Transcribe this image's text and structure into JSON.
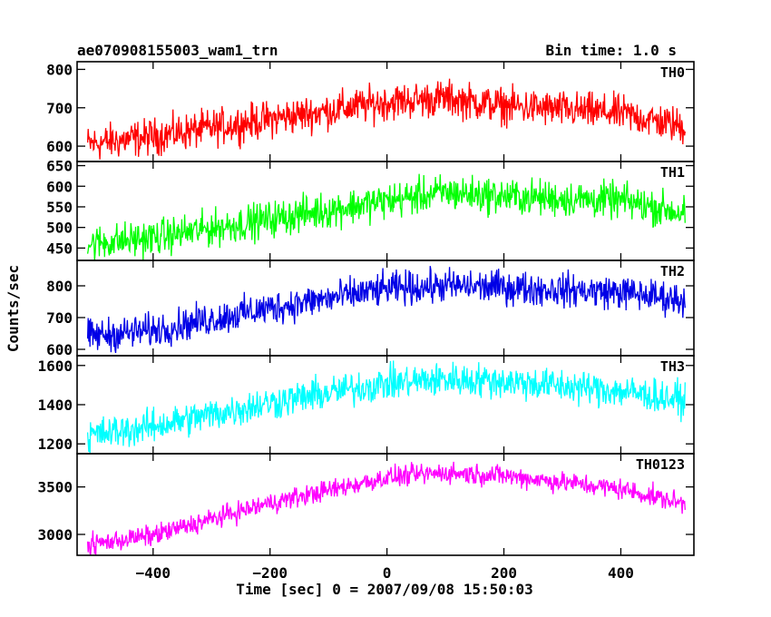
{
  "header": {
    "title": "ae070908155003_wam1_trn",
    "bin_time": "Bin time: 1.0 s"
  },
  "chart_data": {
    "type": "line",
    "xlabel": "Time [sec] 0 = 2007/09/08 15:50:03",
    "ylabel": "Counts/sec",
    "xlim": [
      -530,
      525
    ],
    "x_ticks": [
      -400,
      -200,
      0,
      200,
      400
    ],
    "x_tick_labels": [
      "−400",
      "−200",
      "0",
      "200",
      "400"
    ],
    "x_range": [
      -512,
      510
    ],
    "bin_time_s": 1.0,
    "panels": [
      {
        "name": "TH0",
        "color": "#ff0000",
        "ylim": [
          560,
          820
        ],
        "y_ticks": [
          600,
          700,
          800
        ],
        "y_tick_labels": [
          "600",
          "700",
          "800"
        ],
        "trend": [
          [
            -512,
            605
          ],
          [
            -400,
            625
          ],
          [
            -200,
            670
          ],
          [
            0,
            715
          ],
          [
            100,
            725
          ],
          [
            200,
            705
          ],
          [
            400,
            685
          ],
          [
            510,
            650
          ]
        ],
        "noise_amp": 52
      },
      {
        "name": "TH1",
        "color": "#00ff00",
        "ylim": [
          420,
          660
        ],
        "y_ticks": [
          450,
          500,
          550,
          600,
          650
        ],
        "y_tick_labels": [
          "450",
          "500",
          "550",
          "600",
          "650"
        ],
        "trend": [
          [
            -512,
            460
          ],
          [
            -400,
            475
          ],
          [
            -200,
            520
          ],
          [
            0,
            565
          ],
          [
            100,
            585
          ],
          [
            200,
            575
          ],
          [
            400,
            565
          ],
          [
            510,
            535
          ]
        ],
        "noise_amp": 48
      },
      {
        "name": "TH2",
        "color": "#0000e6",
        "ylim": [
          580,
          880
        ],
        "y_ticks": [
          600,
          700,
          800
        ],
        "y_tick_labels": [
          "600",
          "700",
          "800"
        ],
        "trend": [
          [
            -512,
            640
          ],
          [
            -400,
            660
          ],
          [
            -200,
            730
          ],
          [
            0,
            790
          ],
          [
            100,
            800
          ],
          [
            200,
            795
          ],
          [
            400,
            780
          ],
          [
            510,
            755
          ]
        ],
        "noise_amp": 58
      },
      {
        "name": "TH3",
        "color": "#00ffff",
        "ylim": [
          1150,
          1650
        ],
        "y_ticks": [
          1200,
          1400,
          1600
        ],
        "y_tick_labels": [
          "1200",
          "1400",
          "1600"
        ],
        "trend": [
          [
            -512,
            1240
          ],
          [
            -400,
            1290
          ],
          [
            -200,
            1410
          ],
          [
            0,
            1510
          ],
          [
            100,
            1530
          ],
          [
            200,
            1520
          ],
          [
            400,
            1470
          ],
          [
            510,
            1420
          ]
        ],
        "noise_amp": 95
      },
      {
        "name": "TH0123",
        "color": "#ff00ff",
        "ylim": [
          2780,
          3850
        ],
        "y_ticks": [
          3000,
          3500
        ],
        "y_tick_labels": [
          "3000",
          "3500"
        ],
        "trend": [
          [
            -512,
            2890
          ],
          [
            -400,
            2990
          ],
          [
            -200,
            3330
          ],
          [
            0,
            3600
          ],
          [
            100,
            3650
          ],
          [
            200,
            3620
          ],
          [
            400,
            3480
          ],
          [
            510,
            3320
          ]
        ],
        "noise_amp": 120
      }
    ]
  }
}
